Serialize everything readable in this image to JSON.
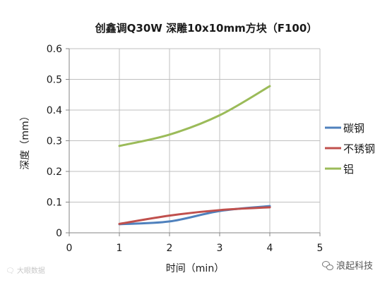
{
  "chart_data": {
    "type": "line",
    "title": "创鑫调Q30W  深雕10x10mm方块（F100）",
    "xlabel": "时间（min）",
    "ylabel": "深度（mm）",
    "xlim": [
      0,
      5
    ],
    "ylim": [
      0,
      0.6
    ],
    "xticks": [
      "0",
      "1",
      "2",
      "3",
      "4",
      "5"
    ],
    "yticks": [
      "0",
      "0.1",
      "0.2",
      "0.3",
      "0.4",
      "0.5",
      "0.6"
    ],
    "grid": true,
    "legend": "right",
    "series": [
      {
        "name": "碳钢",
        "color": "#4f81bd",
        "x": [
          1,
          2,
          3,
          4
        ],
        "values": [
          0.028,
          0.037,
          0.071,
          0.087
        ]
      },
      {
        "name": "不锈钢",
        "color": "#c0504d",
        "x": [
          1,
          2,
          3,
          4
        ],
        "values": [
          0.029,
          0.056,
          0.074,
          0.083
        ]
      },
      {
        "name": "铝",
        "color": "#9bbb59",
        "x": [
          1,
          2,
          3,
          4
        ],
        "values": [
          0.283,
          0.32,
          0.383,
          0.478
        ]
      }
    ]
  },
  "watermarks": {
    "left": "🗨 大眼数据",
    "right": "浪起科技"
  }
}
